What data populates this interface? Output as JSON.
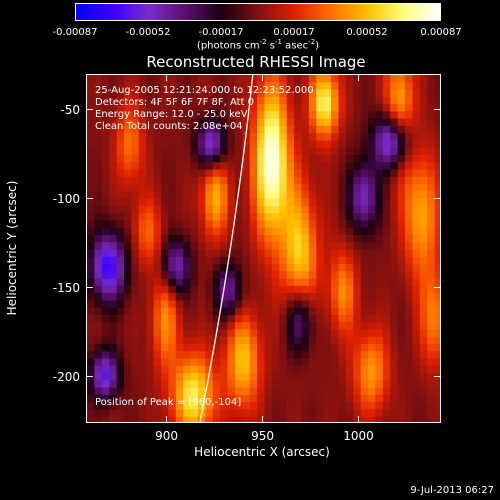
{
  "colorbar": {
    "tick_labels": [
      "-0.00087",
      "-0.00052",
      "-0.00017",
      "0.00017",
      "0.00052",
      "0.00087"
    ],
    "unit_label": "(photons cm^-2 s^-1 asec^-2)",
    "unit_parts": [
      "(photons cm",
      "-2",
      " s",
      "-1",
      " asec",
      "-2",
      ")"
    ]
  },
  "title": "Reconstructed RHESSI Image",
  "info": {
    "line1": "25-Aug-2005 12:21:24.000 to 12:23:52.000",
    "line2": "Detectors: 4F 5F 6F 7F 8F, Att 0",
    "line3": "Energy Range: 12.0 - 25.0 keV",
    "line4": "Clean    Total counts: 2.08e+04",
    "peak": "Position of Peak = [960,-104]"
  },
  "footer": {
    "date": "9-Jul-2013 06:27"
  },
  "chart_data": {
    "type": "heatmap",
    "title": "Reconstructed RHESSI Image",
    "xlabel": "Heliocentric X (arcsec)",
    "ylabel": "Heliocentric Y (arcsec)",
    "xlim": [
      858,
      1043
    ],
    "ylim": [
      -226,
      -30
    ],
    "xticks": [
      900,
      950,
      1000
    ],
    "yticks": [
      -50,
      -100,
      -150,
      -200
    ],
    "colorbar_range": [
      -0.00087,
      0.00087
    ],
    "colorbar_ticks": [
      -0.00087,
      -0.00052,
      -0.00017,
      0.00017,
      0.00052,
      0.00087
    ],
    "colormap": [
      "#0000ff",
      "#3c00ff",
      "#7a2cc8",
      "#5a1070",
      "#1a0010",
      "#801010",
      "#e02000",
      "#ff7000",
      "#ffc000",
      "#ffff80",
      "#ffffff"
    ],
    "limb_arc": true,
    "peak_position": [
      960,
      -104
    ],
    "grid": false
  }
}
